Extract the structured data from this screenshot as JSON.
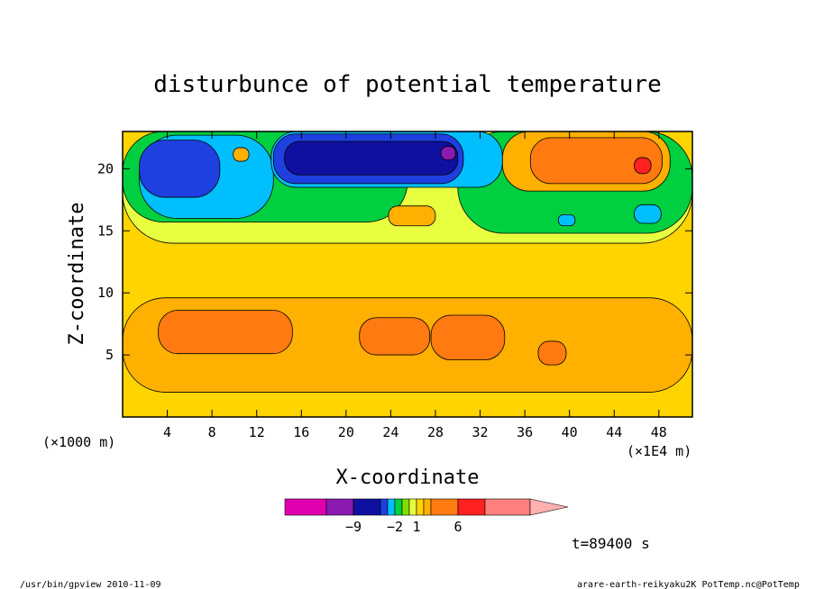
{
  "chart_data": {
    "type": "heatmap",
    "title": "disturbunce of potential temperature",
    "xlabel": "X-coordinate",
    "ylabel": "Z-coordinate",
    "x_unit_left": "(×1000 m)",
    "x_unit_right": "(×1E4 m)",
    "xlim": [
      0,
      51
    ],
    "ylim": [
      0,
      23
    ],
    "x_ticks": [
      4,
      8,
      12,
      16,
      20,
      24,
      28,
      32,
      36,
      40,
      44,
      48
    ],
    "y_ticks": [
      5,
      10,
      15,
      20
    ],
    "colorbar": {
      "labels": [
        {
          "value": -9,
          "text": "−9"
        },
        {
          "value": -2,
          "text": "−2"
        },
        {
          "value": 1,
          "text": "1"
        },
        {
          "value": 6,
          "text": "6"
        }
      ],
      "colors": [
        "#e000b0",
        "#8a1ab0",
        "#1010a0",
        "#1e40e0",
        "#00bfff",
        "#00cf40",
        "#7ee000",
        "#e8ff40",
        "#ffd400",
        "#ffb000",
        "#ff7a10",
        "#ff2020",
        "#ff7f7f",
        "#ffb0b0"
      ],
      "label_cells": [
        1,
        4,
        7,
        10
      ]
    },
    "background_level": "#ffd400",
    "regions": [
      {
        "level": "#ffb000",
        "x": [
          0,
          51
        ],
        "y": [
          2.0,
          9.6
        ]
      },
      {
        "level": "#ff7a10",
        "x": [
          3.2,
          15.2
        ],
        "y": [
          5.1,
          8.6
        ]
      },
      {
        "level": "#ff7a10",
        "x": [
          21.2,
          27.5
        ],
        "y": [
          5.0,
          8.0
        ]
      },
      {
        "level": "#ff7a10",
        "x": [
          27.6,
          34.2
        ],
        "y": [
          4.6,
          8.2
        ]
      },
      {
        "level": "#ff7a10",
        "x": [
          37.2,
          39.7
        ],
        "y": [
          4.2,
          6.1
        ]
      },
      {
        "level": "#e8ff40",
        "x": [
          0,
          51
        ],
        "y": [
          14.0,
          23.0
        ]
      },
      {
        "level": "#00cf40",
        "x": [
          0,
          25.5
        ],
        "y": [
          15.7,
          23.0
        ]
      },
      {
        "level": "#00cf40",
        "x": [
          30.0,
          51
        ],
        "y": [
          14.8,
          23.0
        ]
      },
      {
        "level": "#00bfff",
        "x": [
          1.5,
          13.5
        ],
        "y": [
          16.0,
          22.7
        ]
      },
      {
        "level": "#00bfff",
        "x": [
          13.3,
          34.0
        ],
        "y": [
          18.5,
          23.0
        ]
      },
      {
        "level": "#1e40e0",
        "x": [
          1.5,
          8.7
        ],
        "y": [
          17.7,
          22.3
        ]
      },
      {
        "level": "#1e40e0",
        "x": [
          13.5,
          30.5
        ],
        "y": [
          18.8,
          22.8
        ]
      },
      {
        "level": "#1010a0",
        "x": [
          14.5,
          30.0
        ],
        "y": [
          19.5,
          22.2
        ]
      },
      {
        "level": "#8a1ab0",
        "x": [
          28.5,
          29.8
        ],
        "y": [
          20.7,
          21.8
        ]
      },
      {
        "level": "#ffb000",
        "x": [
          34.0,
          49.0
        ],
        "y": [
          18.2,
          23.0
        ]
      },
      {
        "level": "#ff7a10",
        "x": [
          36.5,
          48.3
        ],
        "y": [
          18.8,
          22.5
        ]
      },
      {
        "level": "#ff2020",
        "x": [
          45.8,
          47.3
        ],
        "y": [
          19.6,
          20.9
        ]
      },
      {
        "level": "#ffb000",
        "x": [
          23.8,
          28.0
        ],
        "y": [
          15.4,
          17.0
        ]
      },
      {
        "level": "#ffb000",
        "x": [
          9.9,
          11.3
        ],
        "y": [
          20.6,
          21.7
        ]
      },
      {
        "level": "#00bfff",
        "x": [
          39.0,
          40.5
        ],
        "y": [
          15.4,
          16.3
        ]
      },
      {
        "level": "#00bfff",
        "x": [
          45.8,
          48.2
        ],
        "y": [
          15.6,
          17.1
        ]
      }
    ]
  },
  "footer": {
    "time_label": "t=89400 s",
    "left_text": "/usr/bin/gpview  2010-11-09",
    "right_text": "arare-earth-reikyaku2K_PotTemp.nc@PotTemp"
  }
}
